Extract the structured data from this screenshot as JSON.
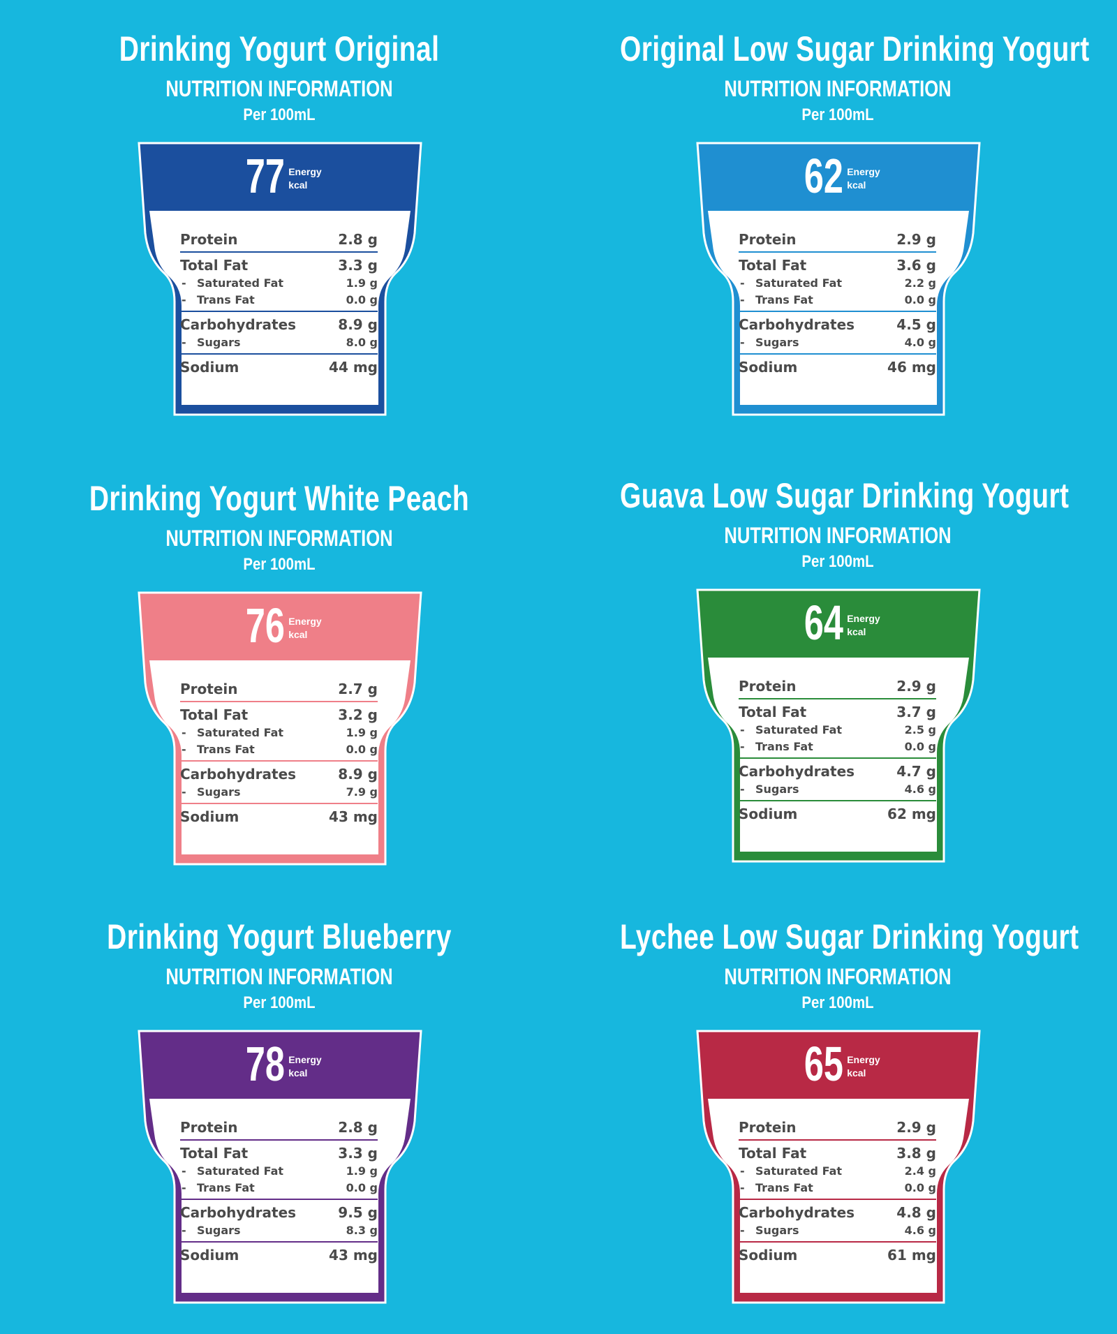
{
  "panels": [
    {
      "title": "Drinking Yogurt Original",
      "subtitle": "NUTRITION INFORMATION",
      "per": "Per 100mL",
      "color": "#1b4f9e",
      "energy": "77",
      "energy_label": "Energy",
      "energy_unit": "kcal",
      "protein_label": "Protein",
      "protein": "2.8 g",
      "fat_label": "Total Fat",
      "fat": "3.3 g",
      "sat_label": "Saturated Fat",
      "sat": "1.9  g",
      "trans_label": "Trans Fat",
      "trans": "0.0  g",
      "carb_label": "Carbohydrates",
      "carb": "8.9 g",
      "sugar_label": "Sugars",
      "sugar": "8.0  g",
      "sodium_label": "Sodium",
      "sodium": "44 mg"
    },
    {
      "title": "Original Low Sugar Drinking Yogurt",
      "subtitle": "NUTRITION INFORMATION",
      "per": "Per 100mL",
      "color": "#1f8fd1",
      "energy": "62",
      "energy_label": "Energy",
      "energy_unit": "kcal",
      "protein_label": "Protein",
      "protein": "2.9 g",
      "fat_label": "Total Fat",
      "fat": "3.6 g",
      "sat_label": "Saturated Fat",
      "sat": "2.2  g",
      "trans_label": "Trans Fat",
      "trans": "0.0  g",
      "carb_label": "Carbohydrates",
      "carb": "4.5 g",
      "sugar_label": "Sugars",
      "sugar": "4.0  g",
      "sodium_label": "Sodium",
      "sodium": "46 mg"
    },
    {
      "title": "Drinking Yogurt White Peach",
      "subtitle": "NUTRITION INFORMATION",
      "per": "Per 100mL",
      "color": "#ef7f88",
      "energy": "76",
      "energy_label": "Energy",
      "energy_unit": "kcal",
      "protein_label": "Protein",
      "protein": "2.7 g",
      "fat_label": "Total Fat",
      "fat": "3.2 g",
      "sat_label": "Saturated Fat",
      "sat": "1.9  g",
      "trans_label": "Trans Fat",
      "trans": "0.0  g",
      "carb_label": "Carbohydrates",
      "carb": "8.9 g",
      "sugar_label": "Sugars",
      "sugar": "7.9  g",
      "sodium_label": "Sodium",
      "sodium": "43 mg"
    },
    {
      "title": "Guava Low Sugar Drinking Yogurt",
      "subtitle": "NUTRITION INFORMATION",
      "per": "Per 100mL",
      "color": "#2a8c3a",
      "energy": "64",
      "energy_label": "Energy",
      "energy_unit": "kcal",
      "protein_label": "Protein",
      "protein": "2.9 g",
      "fat_label": "Total Fat",
      "fat": "3.7 g",
      "sat_label": "Saturated Fat",
      "sat": "2.5  g",
      "trans_label": "Trans Fat",
      "trans": "0.0  g",
      "carb_label": "Carbohydrates",
      "carb": "4.7 g",
      "sugar_label": "Sugars",
      "sugar": "4.6  g",
      "sodium_label": "Sodium",
      "sodium": "62 mg"
    },
    {
      "title": "Drinking Yogurt Blueberry",
      "subtitle": "NUTRITION INFORMATION",
      "per": "Per 100mL",
      "color": "#632d88",
      "energy": "78",
      "energy_label": "Energy",
      "energy_unit": "kcal",
      "protein_label": "Protein",
      "protein": "2.8 g",
      "fat_label": "Total Fat",
      "fat": "3.3 g",
      "sat_label": "Saturated Fat",
      "sat": "1.9  g",
      "trans_label": "Trans Fat",
      "trans": "0.0  g",
      "carb_label": "Carbohydrates",
      "carb": "9.5 g",
      "sugar_label": "Sugars",
      "sugar": "8.3  g",
      "sodium_label": "Sodium",
      "sodium": "43 mg"
    },
    {
      "title": "Lychee Low Sugar Drinking Yogurt",
      "subtitle": "NUTRITION INFORMATION",
      "per": "Per 100mL",
      "color": "#b82945",
      "energy": "65",
      "energy_label": "Energy",
      "energy_unit": "kcal",
      "protein_label": "Protein",
      "protein": "2.9 g",
      "fat_label": "Total Fat",
      "fat": "3.8 g",
      "sat_label": "Saturated Fat",
      "sat": "2.4  g",
      "trans_label": "Trans Fat",
      "trans": "0.0  g",
      "carb_label": "Carbohydrates",
      "carb": "4.8 g",
      "sugar_label": "Sugars",
      "sugar": "4.6  g",
      "sodium_label": "Sodium",
      "sodium": "61 mg"
    }
  ]
}
